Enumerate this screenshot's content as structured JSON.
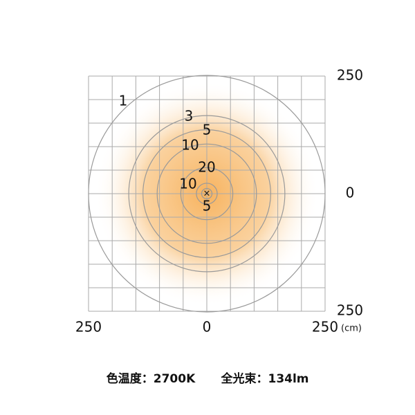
{
  "chart_data": {
    "type": "contour",
    "x_unit": "(cm)",
    "xlim": [
      -250,
      250
    ],
    "ylim": [
      -250,
      250
    ],
    "xticks": [
      {
        "value": -250,
        "label": "250"
      },
      0,
      250
    ],
    "yticks": [
      250,
      0,
      {
        "value": -250,
        "label": "250"
      }
    ],
    "grid": [
      -250,
      -200,
      -150,
      -100,
      -50,
      0,
      50,
      100,
      150,
      200,
      250
    ],
    "center_marker": "×",
    "contours": [
      {
        "label": 1,
        "radius": 250
      },
      {
        "label": 3,
        "radius": 165
      },
      {
        "label": 5,
        "radius": 135
      },
      {
        "label": 10,
        "radius": 105
      },
      {
        "label": 20,
        "radius": 55
      },
      {
        "label": 10,
        "radius": 22
      },
      {
        "label": 5,
        "radius": 11
      }
    ],
    "footer": [
      "色温度：2700K",
      "全光束：134lm"
    ]
  }
}
